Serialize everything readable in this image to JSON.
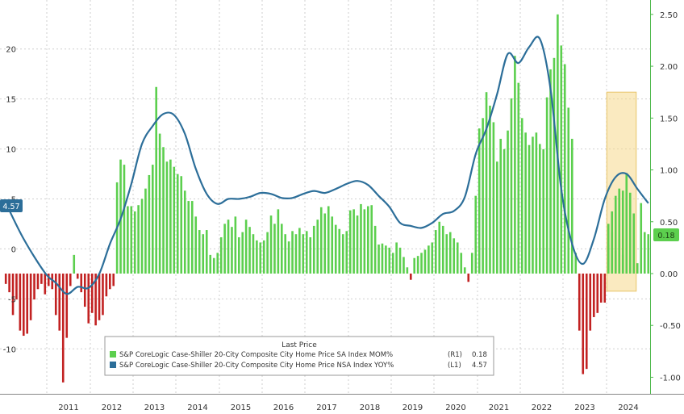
{
  "chart_data": {
    "type": "bar+line",
    "title": "",
    "years": [
      "2011",
      "2012",
      "2013",
      "2014",
      "2015",
      "2016",
      "2017",
      "2018",
      "2019",
      "2020",
      "2021",
      "2022",
      "2023",
      "2024"
    ],
    "left_axis": {
      "ticks": [
        -10,
        -5,
        0,
        5,
        10,
        15,
        20
      ],
      "ylim": [
        -14.5,
        24.5
      ]
    },
    "right_axis": {
      "ticks": [
        "-1.00",
        "-0.50",
        "0.00",
        "0.50",
        "1.00",
        "1.50",
        "2.00",
        "2.50"
      ],
      "ylim": [
        -1.16,
        2.6
      ]
    },
    "grid": true,
    "legend": {
      "title": "Last Price",
      "position": "bottom-center",
      "entries": [
        {
          "label": "S&P CoreLogic Case-Shiller 20-City Composite City Home Price SA Index MOM%",
          "axis": "(R1)",
          "last": "0.18",
          "color": "#5ccf4e"
        },
        {
          "label": "S&P CoreLogic Case-Shiller 20-City Composite City Home Price NSA Index YOY%",
          "axis": "(L1)",
          "last": "4.57",
          "color": "#2c6e99"
        }
      ]
    },
    "callouts": {
      "left": "4.57",
      "right": "0.18"
    },
    "colors": {
      "positive_bar": "#5ccf4e",
      "negative_bar": "#c22222",
      "line": "#2c6e99",
      "highlight": "#f5d98c",
      "right_axis_text": "#4cb84a"
    },
    "series": [
      {
        "name": "S&P CoreLogic Case-Shiller 20-City Composite City Home Price SA Index MOM%",
        "axis": "right",
        "type": "bar",
        "start": "2010-01",
        "values": [
          -0.1,
          -0.18,
          -0.4,
          -0.25,
          -0.55,
          -0.6,
          -0.58,
          -0.45,
          -0.25,
          -0.15,
          -0.1,
          -0.2,
          -0.12,
          -0.15,
          -0.4,
          -0.55,
          -1.05,
          -0.62,
          -0.12,
          0.18,
          -0.05,
          -0.18,
          -0.32,
          -0.48,
          -0.38,
          -0.5,
          -0.45,
          -0.4,
          -0.22,
          -0.15,
          -0.12,
          0.88,
          1.1,
          1.05,
          0.65,
          0.65,
          0.6,
          0.66,
          0.72,
          0.82,
          0.95,
          1.05,
          1.8,
          1.35,
          1.22,
          1.08,
          1.1,
          1.03,
          0.96,
          0.94,
          0.8,
          0.7,
          0.7,
          0.55,
          0.42,
          0.38,
          0.42,
          0.18,
          0.15,
          0.2,
          0.35,
          0.48,
          0.52,
          0.45,
          0.55,
          0.35,
          0.4,
          0.52,
          0.45,
          0.38,
          0.32,
          0.3,
          0.32,
          0.4,
          0.56,
          0.48,
          0.62,
          0.48,
          0.38,
          0.31,
          0.41,
          0.38,
          0.44,
          0.38,
          0.41,
          0.35,
          0.46,
          0.52,
          0.64,
          0.58,
          0.65,
          0.55,
          0.47,
          0.43,
          0.38,
          0.41,
          0.61,
          0.62,
          0.56,
          0.67,
          0.62,
          0.65,
          0.66,
          0.46,
          0.28,
          0.29,
          0.27,
          0.25,
          0.2,
          0.3,
          0.25,
          0.16,
          0.06,
          -0.06,
          0.15,
          0.17,
          0.2,
          0.23,
          0.27,
          0.3,
          0.42,
          0.5,
          0.46,
          0.38,
          0.4,
          0.34,
          0.3,
          0.2,
          0.06,
          -0.08,
          0.2,
          0.75,
          1.4,
          1.5,
          1.75,
          1.62,
          1.46,
          1.08,
          1.3,
          1.2,
          1.38,
          1.69,
          2.1,
          1.84,
          1.5,
          1.36,
          1.24,
          1.32,
          1.36,
          1.25,
          1.2,
          1.7,
          1.97,
          2.08,
          2.5,
          2.2,
          2.02,
          1.6,
          1.3,
          0.2,
          -0.55,
          -0.97,
          -0.92,
          -0.55,
          -0.42,
          -0.38,
          -0.28,
          -0.28,
          0.28,
          0.6,
          0.75,
          0.82,
          0.8,
          0.97,
          0.78,
          0.58,
          0.1,
          0.68,
          0.4,
          0.38,
          0.48,
          0.4,
          0.22,
          0.33,
          0.18
        ]
      },
      {
        "name": "S&P CoreLogic Case-Shiller 20-City Composite City Home Price NSA Index YOY%",
        "axis": "left",
        "type": "line",
        "last_value": 4.57,
        "points": [
          [
            "2010-01",
            4.6
          ],
          [
            "2010-06",
            1.0
          ],
          [
            "2010-12",
            -2.4
          ],
          [
            "2011-03",
            -3.4
          ],
          [
            "2011-06",
            -4.5
          ],
          [
            "2011-09",
            -3.8
          ],
          [
            "2011-12",
            -3.9
          ],
          [
            "2012-03",
            -2.5
          ],
          [
            "2012-06",
            0.5
          ],
          [
            "2012-09",
            3.0
          ],
          [
            "2012-12",
            6.5
          ],
          [
            "2013-03",
            10.5
          ],
          [
            "2013-06",
            12.3
          ],
          [
            "2013-09",
            13.5
          ],
          [
            "2013-12",
            13.4
          ],
          [
            "2014-03",
            11.5
          ],
          [
            "2014-06",
            8.0
          ],
          [
            "2014-09",
            5.5
          ],
          [
            "2014-12",
            4.5
          ],
          [
            "2015-03",
            5.0
          ],
          [
            "2015-06",
            5.0
          ],
          [
            "2015-09",
            5.2
          ],
          [
            "2015-12",
            5.6
          ],
          [
            "2016-03",
            5.5
          ],
          [
            "2016-06",
            5.1
          ],
          [
            "2016-09",
            5.1
          ],
          [
            "2016-12",
            5.5
          ],
          [
            "2017-03",
            5.8
          ],
          [
            "2017-06",
            5.6
          ],
          [
            "2017-09",
            6.0
          ],
          [
            "2017-12",
            6.5
          ],
          [
            "2018-03",
            6.8
          ],
          [
            "2018-06",
            6.4
          ],
          [
            "2018-09",
            5.3
          ],
          [
            "2018-12",
            4.2
          ],
          [
            "2019-03",
            2.6
          ],
          [
            "2019-06",
            2.3
          ],
          [
            "2019-09",
            2.1
          ],
          [
            "2019-12",
            2.6
          ],
          [
            "2020-03",
            3.5
          ],
          [
            "2020-06",
            3.8
          ],
          [
            "2020-09",
            5.2
          ],
          [
            "2020-12",
            9.5
          ],
          [
            "2021-03",
            12.0
          ],
          [
            "2021-06",
            15.5
          ],
          [
            "2021-09",
            19.5
          ],
          [
            "2021-12",
            18.6
          ],
          [
            "2022-03",
            20.2
          ],
          [
            "2022-06",
            21.0
          ],
          [
            "2022-09",
            16.0
          ],
          [
            "2022-12",
            6.0
          ],
          [
            "2023-03",
            0.5
          ],
          [
            "2023-06",
            -1.5
          ],
          [
            "2023-09",
            1.0
          ],
          [
            "2023-12",
            5.0
          ],
          [
            "2024-03",
            7.2
          ],
          [
            "2024-06",
            7.5
          ],
          [
            "2024-09",
            6.0
          ],
          [
            "2024-12",
            4.57
          ]
        ]
      }
    ]
  }
}
